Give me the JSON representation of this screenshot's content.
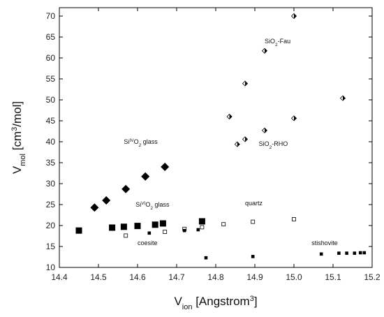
{
  "chart_data": {
    "type": "scatter",
    "xlabel": {
      "base": "V",
      "sub": "ion",
      "rest": " [Angstrom",
      "sup": "3",
      "end": "]"
    },
    "ylabel": {
      "base": "V",
      "sub": "mol",
      "rest": " [cm",
      "sup": "3",
      "end": "/mol]"
    },
    "xlim": [
      14.4,
      15.2
    ],
    "ylim": [
      10,
      72
    ],
    "xticks": [
      14.4,
      14.5,
      14.6,
      14.7,
      14.8,
      14.9,
      15.0,
      15.1,
      15.2
    ],
    "yticks": [
      10,
      15,
      20,
      25,
      30,
      35,
      40,
      45,
      50,
      55,
      60,
      65,
      70
    ],
    "grid": false,
    "series": [
      {
        "marker": "filled-diamond",
        "points": [
          [
            14.49,
            24.3
          ],
          [
            14.52,
            26.0
          ],
          [
            14.57,
            28.7
          ],
          [
            14.62,
            31.7
          ],
          [
            14.67,
            34.0
          ]
        ]
      },
      {
        "marker": "filled-square",
        "points": [
          [
            14.45,
            18.8
          ],
          [
            14.535,
            19.5
          ],
          [
            14.565,
            19.7
          ],
          [
            14.6,
            19.9
          ],
          [
            14.645,
            20.2
          ],
          [
            14.665,
            20.5
          ],
          [
            14.765,
            21.0
          ]
        ]
      },
      {
        "marker": "open-square",
        "points": [
          [
            14.57,
            17.6
          ],
          [
            14.67,
            18.5
          ],
          [
            14.72,
            19.2
          ],
          [
            14.765,
            19.6
          ],
          [
            14.82,
            20.3
          ],
          [
            14.895,
            20.9
          ],
          [
            15.0,
            21.5
          ]
        ]
      },
      {
        "marker": "small-filled-square",
        "points": [
          [
            14.63,
            18.2
          ],
          [
            14.72,
            18.8
          ],
          [
            14.755,
            19.0
          ],
          [
            14.775,
            12.3
          ],
          [
            14.895,
            12.6
          ],
          [
            15.07,
            13.2
          ],
          [
            15.115,
            13.4
          ],
          [
            15.135,
            13.4
          ],
          [
            15.155,
            13.4
          ],
          [
            15.17,
            13.5
          ],
          [
            15.18,
            13.5
          ]
        ]
      },
      {
        "marker": "half-diamond",
        "points": [
          [
            14.835,
            46.0
          ],
          [
            14.855,
            39.4
          ],
          [
            14.875,
            53.9
          ],
          [
            14.875,
            40.6
          ],
          [
            14.925,
            61.7
          ],
          [
            14.925,
            42.7
          ],
          [
            15.0,
            70.0
          ],
          [
            15.0,
            45.6
          ],
          [
            15.125,
            50.4
          ]
        ]
      }
    ],
    "annotations": [
      {
        "id": "sio2-fau",
        "parts": [
          [
            "t",
            "SiO"
          ],
          [
            "sub",
            "2"
          ],
          [
            "t",
            "-Fau"
          ]
        ],
        "x": 14.925,
        "y": 63.5
      },
      {
        "id": "sio2-rho",
        "parts": [
          [
            "t",
            "SiO"
          ],
          [
            "sub",
            "2"
          ],
          [
            "t",
            "-RHO"
          ]
        ],
        "x": 14.91,
        "y": 39.0
      },
      {
        "id": "si4o2-glass",
        "parts": [
          [
            "t",
            "Si"
          ],
          [
            "sup",
            "IV"
          ],
          [
            "t",
            "O"
          ],
          [
            "sub",
            "2"
          ],
          [
            "t",
            " glass"
          ]
        ],
        "x": 14.565,
        "y": 39.5
      },
      {
        "id": "si6o2-glass",
        "parts": [
          [
            "t",
            "Si"
          ],
          [
            "sup",
            "VI"
          ],
          [
            "t",
            "O"
          ],
          [
            "sub",
            "2"
          ],
          [
            "t",
            " glass"
          ]
        ],
        "x": 14.595,
        "y": 24.5
      },
      {
        "id": "quartz",
        "parts": [
          [
            "t",
            "quartz"
          ]
        ],
        "x": 14.875,
        "y": 24.8
      },
      {
        "id": "coesite",
        "parts": [
          [
            "t",
            "coesite"
          ]
        ],
        "x": 14.6,
        "y": 15.3
      },
      {
        "id": "stishovite",
        "parts": [
          [
            "t",
            "stishovite"
          ]
        ],
        "x": 15.045,
        "y": 15.3
      }
    ]
  }
}
